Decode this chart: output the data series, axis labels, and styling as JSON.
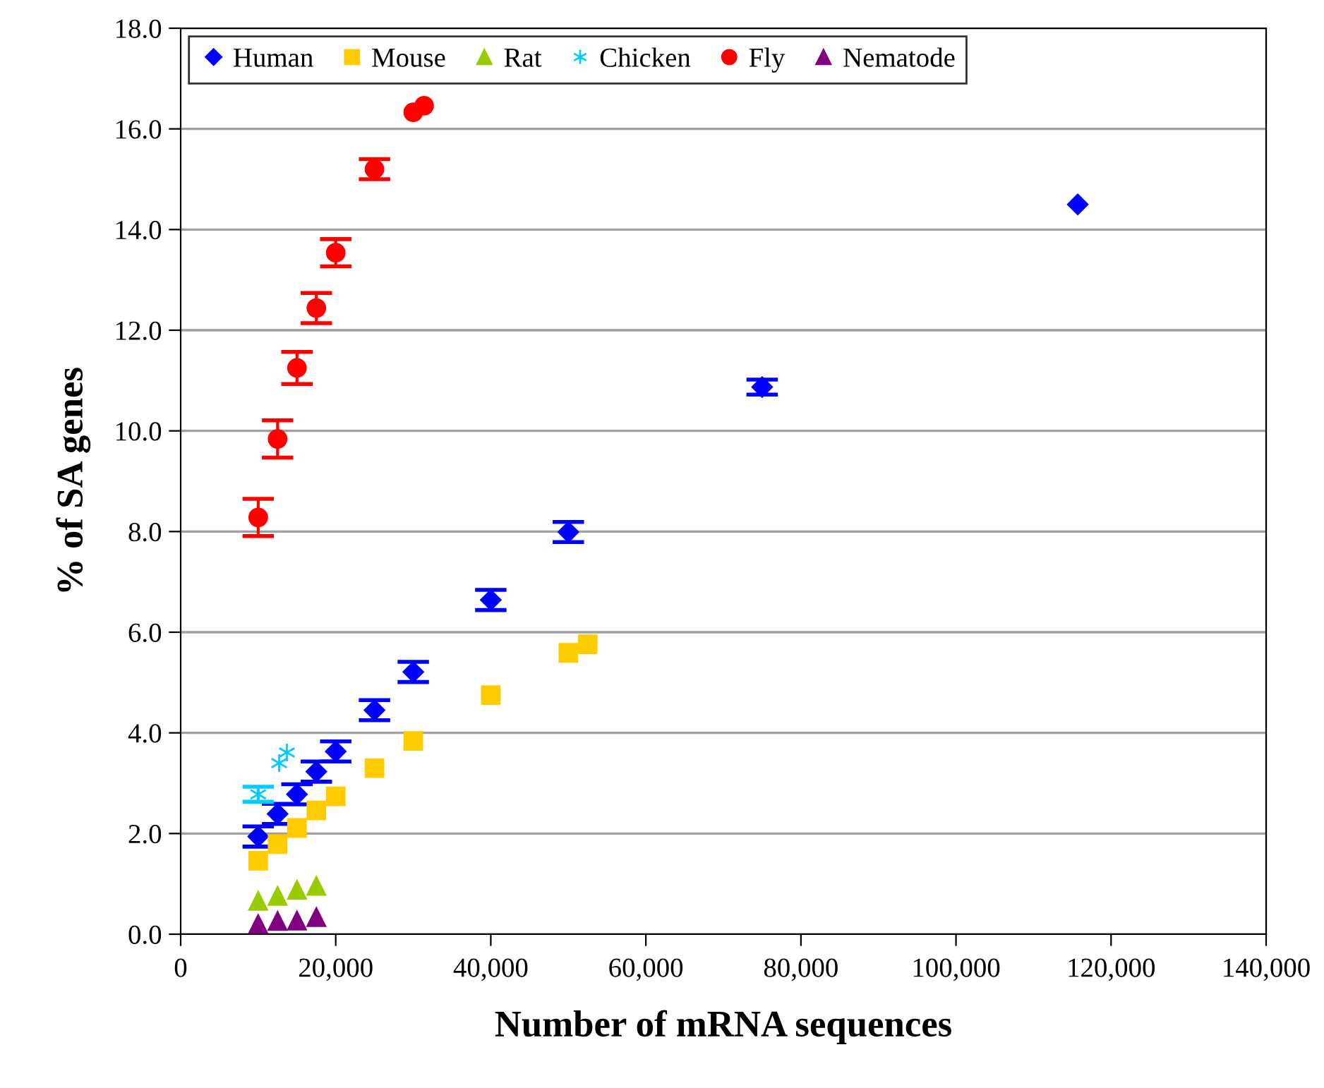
{
  "chart_data": {
    "type": "scatter",
    "xlabel": "Number of mRNA sequences",
    "ylabel": "% of SA genes",
    "xlim": [
      0,
      140000
    ],
    "xticks": [
      {
        "value": 0,
        "label": "0"
      },
      {
        "value": 20000,
        "label": "20,000"
      },
      {
        "value": 40000,
        "label": "40,000"
      },
      {
        "value": 60000,
        "label": "60,000"
      },
      {
        "value": 80000,
        "label": "80,000"
      },
      {
        "value": 100000,
        "label": "100,000"
      },
      {
        "value": 120000,
        "label": "120,000"
      },
      {
        "value": 140000,
        "label": "140,000"
      }
    ],
    "ylim": [
      0,
      18
    ],
    "yticks": [
      {
        "value": 0,
        "label": "0.0"
      },
      {
        "value": 2,
        "label": "2.0"
      },
      {
        "value": 4,
        "label": "4.0"
      },
      {
        "value": 6,
        "label": "6.0"
      },
      {
        "value": 8,
        "label": "8.0"
      },
      {
        "value": 10,
        "label": "10.0"
      },
      {
        "value": 12,
        "label": "12.0"
      },
      {
        "value": 14,
        "label": "14.0"
      },
      {
        "value": 16,
        "label": "16.0"
      },
      {
        "value": 18,
        "label": "18.0"
      }
    ],
    "grid": "y",
    "legend": "top left",
    "series": [
      {
        "name": "Human",
        "color": "#0000ff",
        "marker": "diamond",
        "x": [
          10000,
          12500,
          15000,
          17500,
          20000,
          25000,
          30000,
          40000,
          50000,
          75000,
          115700
        ],
        "values": [
          1.94,
          2.39,
          2.78,
          3.23,
          3.63,
          4.45,
          5.21,
          6.64,
          7.99,
          10.87,
          14.5
        ],
        "errors": [
          0.2,
          0.2,
          0.2,
          0.2,
          0.2,
          0.2,
          0.2,
          0.2,
          0.2,
          0.15,
          null
        ]
      },
      {
        "name": "Mouse",
        "color": "#ffcc00",
        "marker": "square",
        "x": [
          10000,
          12500,
          15000,
          17500,
          20000,
          25000,
          30000,
          40000,
          50000,
          52500
        ],
        "values": [
          1.46,
          1.79,
          2.11,
          2.46,
          2.74,
          3.3,
          3.84,
          4.75,
          5.59,
          5.76
        ]
      },
      {
        "name": "Rat",
        "color": "#99cc00",
        "marker": "triangle",
        "x": [
          10000,
          12500,
          15000,
          17500
        ],
        "values": [
          0.66,
          0.76,
          0.88,
          0.96
        ]
      },
      {
        "name": "Chicken",
        "color": "#00ccff",
        "marker": "cross",
        "x": [
          10000,
          12700,
          13700
        ],
        "values": [
          2.78,
          3.4,
          3.61
        ],
        "errors": [
          0.15,
          null,
          null
        ]
      },
      {
        "name": "Fly",
        "color": "#ff0000",
        "marker": "circle",
        "x": [
          10000,
          12500,
          15000,
          17500,
          20000,
          25000,
          30000,
          31400
        ],
        "values": [
          8.28,
          9.84,
          11.25,
          12.44,
          13.54,
          15.2,
          16.33,
          16.46
        ],
        "errors": [
          0.37,
          0.37,
          0.32,
          0.3,
          0.27,
          0.2,
          null,
          null
        ]
      },
      {
        "name": "Nematode",
        "color": "#800080",
        "marker": "triangle",
        "x": [
          10000,
          12500,
          15000,
          17500
        ],
        "values": [
          0.2,
          0.26,
          0.27,
          0.34
        ]
      }
    ]
  }
}
